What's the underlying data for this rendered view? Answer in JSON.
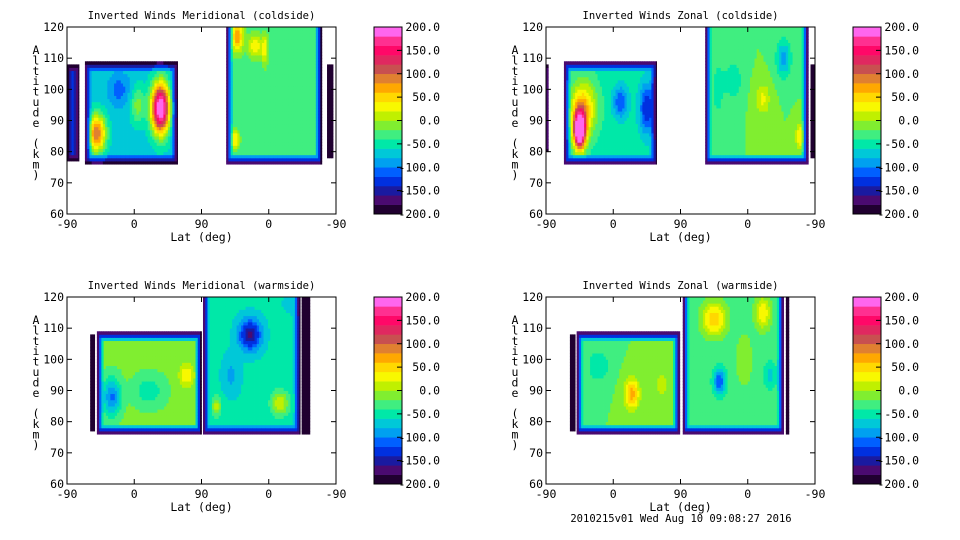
{
  "footer": "2010215v01 Wed Aug 10 09:08:27 2016",
  "colorbar": {
    "levels_min": -200,
    "levels_max": 200,
    "step": 20,
    "labels": [
      "200.0",
      "150.0",
      "100.0",
      "50.0",
      "0.0",
      "-50.0",
      "-100.0",
      "-150.0",
      "-200.0"
    ],
    "label_values": [
      200,
      150,
      100,
      50,
      0,
      -50,
      -100,
      -150,
      -200
    ],
    "colors": [
      "#200030",
      "#4a0a70",
      "#1a1aa0",
      "#0030e0",
      "#0060ff",
      "#00a0f0",
      "#00c8d8",
      "#00e8a8",
      "#40ee80",
      "#80ee30",
      "#c0f000",
      "#f8f800",
      "#ffd800",
      "#ffa800",
      "#e08030",
      "#c85050",
      "#e02860",
      "#ff0868",
      "#ff3090",
      "#ff66ee"
    ]
  },
  "chart_data": [
    {
      "type": "heatmap",
      "title": "Inverted Winds Meridional (coldside)",
      "xlabel": "Lat (deg)",
      "ylabel": "Altitude (km)",
      "xticks": [
        "-90",
        "0",
        "90",
        "0",
        "-90"
      ],
      "yticks": [
        "120",
        "110",
        "100",
        "90",
        "80",
        "70",
        "60"
      ],
      "ylim": [
        60,
        120
      ],
      "track_range": [
        0,
        360
      ],
      "segments": [
        {
          "x": [
            0,
            16
          ],
          "alt": [
            77,
            108
          ],
          "base": -110,
          "blobs": []
        },
        {
          "x": [
            24,
            148
          ],
          "alt": [
            76,
            109
          ],
          "base": -70,
          "blobs": [
            [
              40,
              86,
              170,
              12,
              6
            ],
            [
              125,
              94,
              300,
              12,
              8
            ],
            [
              95,
              95,
              60,
              10,
              6
            ],
            [
              70,
              100,
              -40,
              15,
              5
            ]
          ]
        },
        {
          "x": [
            213,
            341
          ],
          "alt": [
            76,
            120
          ],
          "open_top": true,
          "base": -35,
          "blobs": [
            [
              228,
              117,
              110,
              8,
              5
            ],
            [
              252,
              114,
              70,
              10,
              4
            ],
            [
              265,
              113,
              60,
              4,
              5
            ],
            [
              270,
              96,
              15,
              30,
              12
            ],
            [
              225,
              84,
              80,
              6,
              3
            ]
          ]
        },
        {
          "x": [
            348,
            356
          ],
          "alt": [
            78,
            108
          ],
          "base": -190,
          "blobs": []
        }
      ]
    },
    {
      "type": "heatmap",
      "title": "Inverted Winds Zonal (coldside)",
      "xlabel": "Lat (deg)",
      "ylabel": "Altitude (km)",
      "xticks": [
        "-90",
        "0",
        "90",
        "0",
        "-90"
      ],
      "yticks": [
        "120",
        "110",
        "100",
        "90",
        "80",
        "70",
        "60"
      ],
      "ylim": [
        60,
        120
      ],
      "track_range": [
        0,
        360
      ],
      "segments": [
        {
          "x": [
            0,
            3
          ],
          "alt": [
            80,
            108
          ],
          "base": -80,
          "blobs": []
        },
        {
          "x": [
            24,
            148
          ],
          "alt": [
            76,
            109
          ],
          "base": -50,
          "blobs": [
            [
              45,
              87,
              300,
              8,
              6
            ],
            [
              50,
              94,
              110,
              18,
              9
            ],
            [
              100,
              96,
              -70,
              10,
              5
            ],
            [
              135,
              94,
              -90,
              10,
              8
            ]
          ]
        },
        {
          "x": [
            213,
            351
          ],
          "alt": [
            76,
            120
          ],
          "open_top": true,
          "base": -20,
          "blobs": [
            [
              290,
              97,
              45,
              10,
              5
            ],
            [
              318,
              110,
              -70,
              10,
              6
            ],
            [
              250,
              103,
              -40,
              12,
              6
            ],
            [
              340,
              85,
              60,
              6,
              4
            ],
            [
              230,
              100,
              -30,
              8,
              10
            ]
          ]
        },
        {
          "x": [
            354,
            360
          ],
          "alt": [
            78,
            108
          ],
          "base": -190,
          "blobs": []
        }
      ]
    },
    {
      "type": "heatmap",
      "title": "Inverted Winds Meridional (warmside)",
      "xlabel": "Lat (deg)",
      "ylabel": "Altitude (km)",
      "xticks": [
        "-90",
        "0",
        "90",
        "0",
        "-90"
      ],
      "yticks": [
        "120",
        "110",
        "100",
        "90",
        "80",
        "70",
        "60"
      ],
      "ylim": [
        60,
        120
      ],
      "track_range": [
        0,
        360
      ],
      "segments": [
        {
          "x": [
            31,
            37
          ],
          "alt": [
            77,
            108
          ],
          "base": -200,
          "blobs": []
        },
        {
          "x": [
            40,
            180
          ],
          "alt": [
            76,
            109
          ],
          "base": -15,
          "blobs": [
            [
              60,
              88,
              -90,
              12,
              6
            ],
            [
              160,
              95,
              50,
              10,
              4
            ],
            [
              110,
              90,
              -40,
              20,
              5
            ]
          ]
        },
        {
          "x": [
            182,
            312
          ],
          "alt": [
            76,
            120
          ],
          "open_top": true,
          "base": -55,
          "blobs": [
            [
              245,
              108,
              -110,
              15,
              5
            ],
            [
              220,
              95,
              -30,
              12,
              6
            ],
            [
              285,
              86,
              70,
              12,
              4
            ],
            [
              200,
              85,
              70,
              6,
              3
            ],
            [
              300,
              118,
              -20,
              10,
              3
            ]
          ]
        },
        {
          "x": [
            314,
            325
          ],
          "alt": [
            76,
            120
          ],
          "open_top": true,
          "base": -200,
          "blobs": []
        }
      ]
    },
    {
      "type": "heatmap",
      "title": "Inverted Winds Zonal (warmside)",
      "xlabel": "Lat (deg)",
      "ylabel": "Altitude (km)",
      "xticks": [
        "-90",
        "0",
        "90",
        "0",
        "-90"
      ],
      "yticks": [
        "120",
        "110",
        "100",
        "90",
        "80",
        "70",
        "60"
      ],
      "ylim": [
        60,
        120
      ],
      "track_range": [
        0,
        360
      ],
      "segments": [
        {
          "x": [
            32,
            39
          ],
          "alt": [
            77,
            108
          ],
          "base": -200,
          "blobs": []
        },
        {
          "x": [
            41,
            179
          ],
          "alt": [
            76,
            109
          ],
          "base": -20,
          "blobs": [
            [
              115,
              89,
              90,
              10,
              5
            ],
            [
              70,
              98,
              -40,
              15,
              5
            ],
            [
              155,
              92,
              30,
              10,
              5
            ]
          ]
        },
        {
          "x": [
            183,
            318
          ],
          "alt": [
            76,
            120
          ],
          "open_top": true,
          "base": -30,
          "blobs": [
            [
              225,
              113,
              90,
              15,
              5
            ],
            [
              290,
              115,
              70,
              10,
              5
            ],
            [
              232,
              93,
              -90,
              8,
              4
            ],
            [
              300,
              95,
              -40,
              8,
              4
            ],
            [
              265,
              100,
              30,
              10,
              8
            ]
          ]
        },
        {
          "x": [
            321,
            325
          ],
          "alt": [
            76,
            120
          ],
          "open_top": true,
          "base": -200,
          "blobs": []
        }
      ]
    }
  ]
}
